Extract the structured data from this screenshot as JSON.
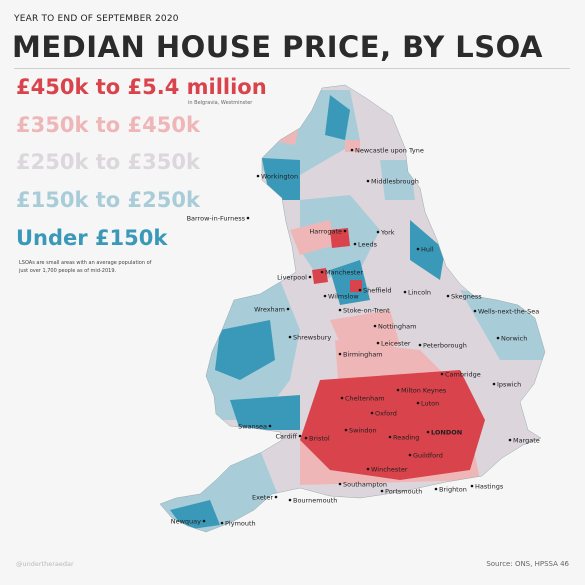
{
  "header": {
    "kicker": "YEAR TO END OF SEPTEMBER 2020",
    "title": "MEDIAN HOUSE PRICE, BY LSOA"
  },
  "legend": [
    {
      "label": "£450k to £5.4 million",
      "color": "#d9434b"
    },
    {
      "label": "£350k to £450k",
      "color": "#efb6b8"
    },
    {
      "label": "£250k to £350k",
      "color": "#dcd7dc"
    },
    {
      "label": "£150k to £250k",
      "color": "#a9ccd9"
    },
    {
      "label": "Under £150k",
      "color": "#3a99b8"
    }
  ],
  "legend_sub": "in Belgravia, Westminster",
  "note": "LSOAs are small areas with an average population of just over 1,700 people as of mid-2019.",
  "credit": "@undertheraedar",
  "source": "Source: ONS, HPSSA 46",
  "places": [
    {
      "name": "Newcastle upon Tyne"
    },
    {
      "name": "Workington"
    },
    {
      "name": "Middlesbrough"
    },
    {
      "name": "Barrow-in-Furness"
    },
    {
      "name": "Harrogate"
    },
    {
      "name": "York"
    },
    {
      "name": "Leeds"
    },
    {
      "name": "Hull"
    },
    {
      "name": "Manchester"
    },
    {
      "name": "Liverpool"
    },
    {
      "name": "Sheffield"
    },
    {
      "name": "Lincoln"
    },
    {
      "name": "Skegness"
    },
    {
      "name": "Wilmslow"
    },
    {
      "name": "Wrexham"
    },
    {
      "name": "Stoke-on-Trent"
    },
    {
      "name": "Wells-next-the-Sea"
    },
    {
      "name": "Nottingham"
    },
    {
      "name": "Shrewsbury"
    },
    {
      "name": "Norwich"
    },
    {
      "name": "Leicester"
    },
    {
      "name": "Peterborough"
    },
    {
      "name": "Birmingham"
    },
    {
      "name": "Cambridge"
    },
    {
      "name": "Milton Keynes"
    },
    {
      "name": "Ipswich"
    },
    {
      "name": "Cheltenham"
    },
    {
      "name": "Luton"
    },
    {
      "name": "Oxford"
    },
    {
      "name": "Swansea"
    },
    {
      "name": "Swindon"
    },
    {
      "name": "LONDON"
    },
    {
      "name": "Cardiff"
    },
    {
      "name": "Bristol"
    },
    {
      "name": "Reading"
    },
    {
      "name": "Margate"
    },
    {
      "name": "Guildford"
    },
    {
      "name": "Winchester"
    },
    {
      "name": "Southampton"
    },
    {
      "name": "Hastings"
    },
    {
      "name": "Portsmouth"
    },
    {
      "name": "Brighton"
    },
    {
      "name": "Exeter"
    },
    {
      "name": "Bournemouth"
    },
    {
      "name": "Newquay"
    },
    {
      "name": "Plymouth"
    }
  ]
}
